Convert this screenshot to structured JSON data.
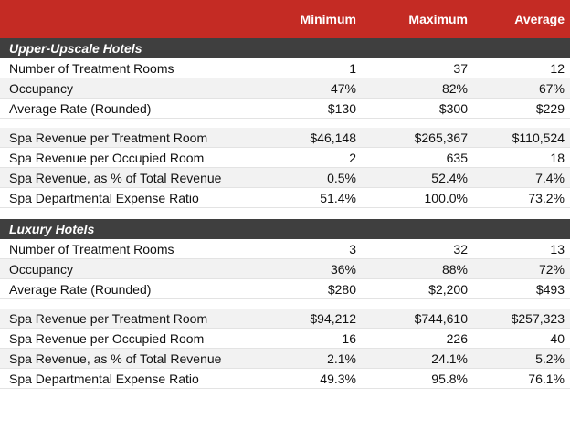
{
  "header": {
    "col1": "Minimum",
    "col2": "Maximum",
    "col3": "Average"
  },
  "sections": [
    {
      "title": "Upper-Upscale Hotels",
      "rows": [
        {
          "label": "Number of Treatment Rooms",
          "min": "1",
          "max": "37",
          "avg": "12"
        },
        {
          "label": "Occupancy",
          "min": "47%",
          "max": "82%",
          "avg": "67%"
        },
        {
          "label": "Average Rate (Rounded)",
          "min": "$130",
          "max": "$300",
          "avg": "$229"
        },
        {
          "label": "Spa Revenue per Treatment Room",
          "min": "$46,148",
          "max": "$265,367",
          "avg": "$110,524"
        },
        {
          "label": "Spa Revenue per Occupied Room",
          "min": "2",
          "max": "635",
          "avg": "18"
        },
        {
          "label": "Spa Revenue, as % of Total Revenue",
          "min": "0.5%",
          "max": "52.4%",
          "avg": "7.4%"
        },
        {
          "label": "Spa Departmental Expense Ratio",
          "min": "51.4%",
          "max": "100.0%",
          "avg": "73.2%"
        }
      ]
    },
    {
      "title": "Luxury Hotels",
      "rows": [
        {
          "label": "Number of Treatment Rooms",
          "min": "3",
          "max": "32",
          "avg": "13"
        },
        {
          "label": "Occupancy",
          "min": "36%",
          "max": "88%",
          "avg": "72%"
        },
        {
          "label": "Average Rate (Rounded)",
          "min": "$280",
          "max": "$2,200",
          "avg": "$493"
        },
        {
          "label": "Spa Revenue per Treatment Room",
          "min": "$94,212",
          "max": "$744,610",
          "avg": "$257,323"
        },
        {
          "label": "Spa Revenue per Occupied Room",
          "min": "16",
          "max": "226",
          "avg": "40"
        },
        {
          "label": "Spa Revenue, as % of Total Revenue",
          "min": "2.1%",
          "max": "24.1%",
          "avg": "5.2%"
        },
        {
          "label": "Spa Departmental Expense Ratio",
          "min": "49.3%",
          "max": "95.8%",
          "avg": "76.1%"
        }
      ]
    }
  ],
  "colors": {
    "header_bg": "#c42b24",
    "section_bg": "#3f3f3f",
    "row_shade": "#f2f2f2"
  }
}
